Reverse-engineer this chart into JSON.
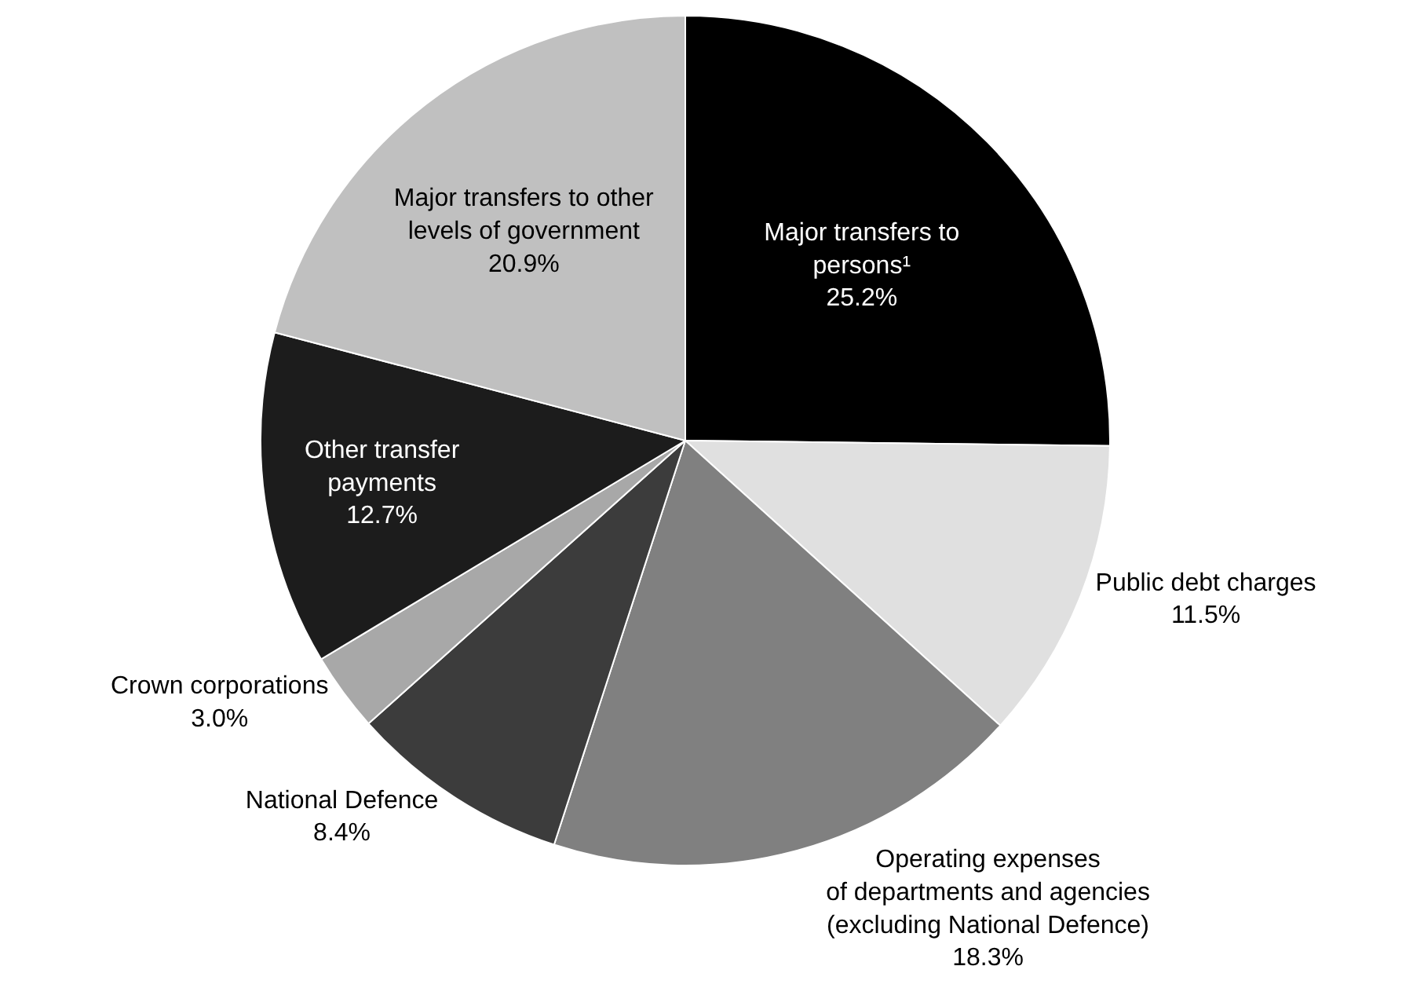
{
  "chart_data": {
    "type": "pie",
    "categories": [
      "Major transfers to\npersons¹",
      "Public debt charges",
      "Operating expenses\nof departments and agencies\n(excluding National Defence)",
      "National Defence",
      "Crown corporations",
      "Other transfer\npayments",
      "Major transfers to other\nlevels of government"
    ],
    "values": [
      25.2,
      11.5,
      18.3,
      8.4,
      3.0,
      12.7,
      20.9
    ],
    "value_labels": [
      "25.2%",
      "11.5%",
      "18.3%",
      "8.4%",
      "3.0%",
      "12.7%",
      "20.9%"
    ],
    "colors": [
      "#000000",
      "#e0e0e0",
      "#808080",
      "#3c3c3c",
      "#a8a8a8",
      "#1c1c1c",
      "#c0c0c0"
    ],
    "legend": false
  }
}
